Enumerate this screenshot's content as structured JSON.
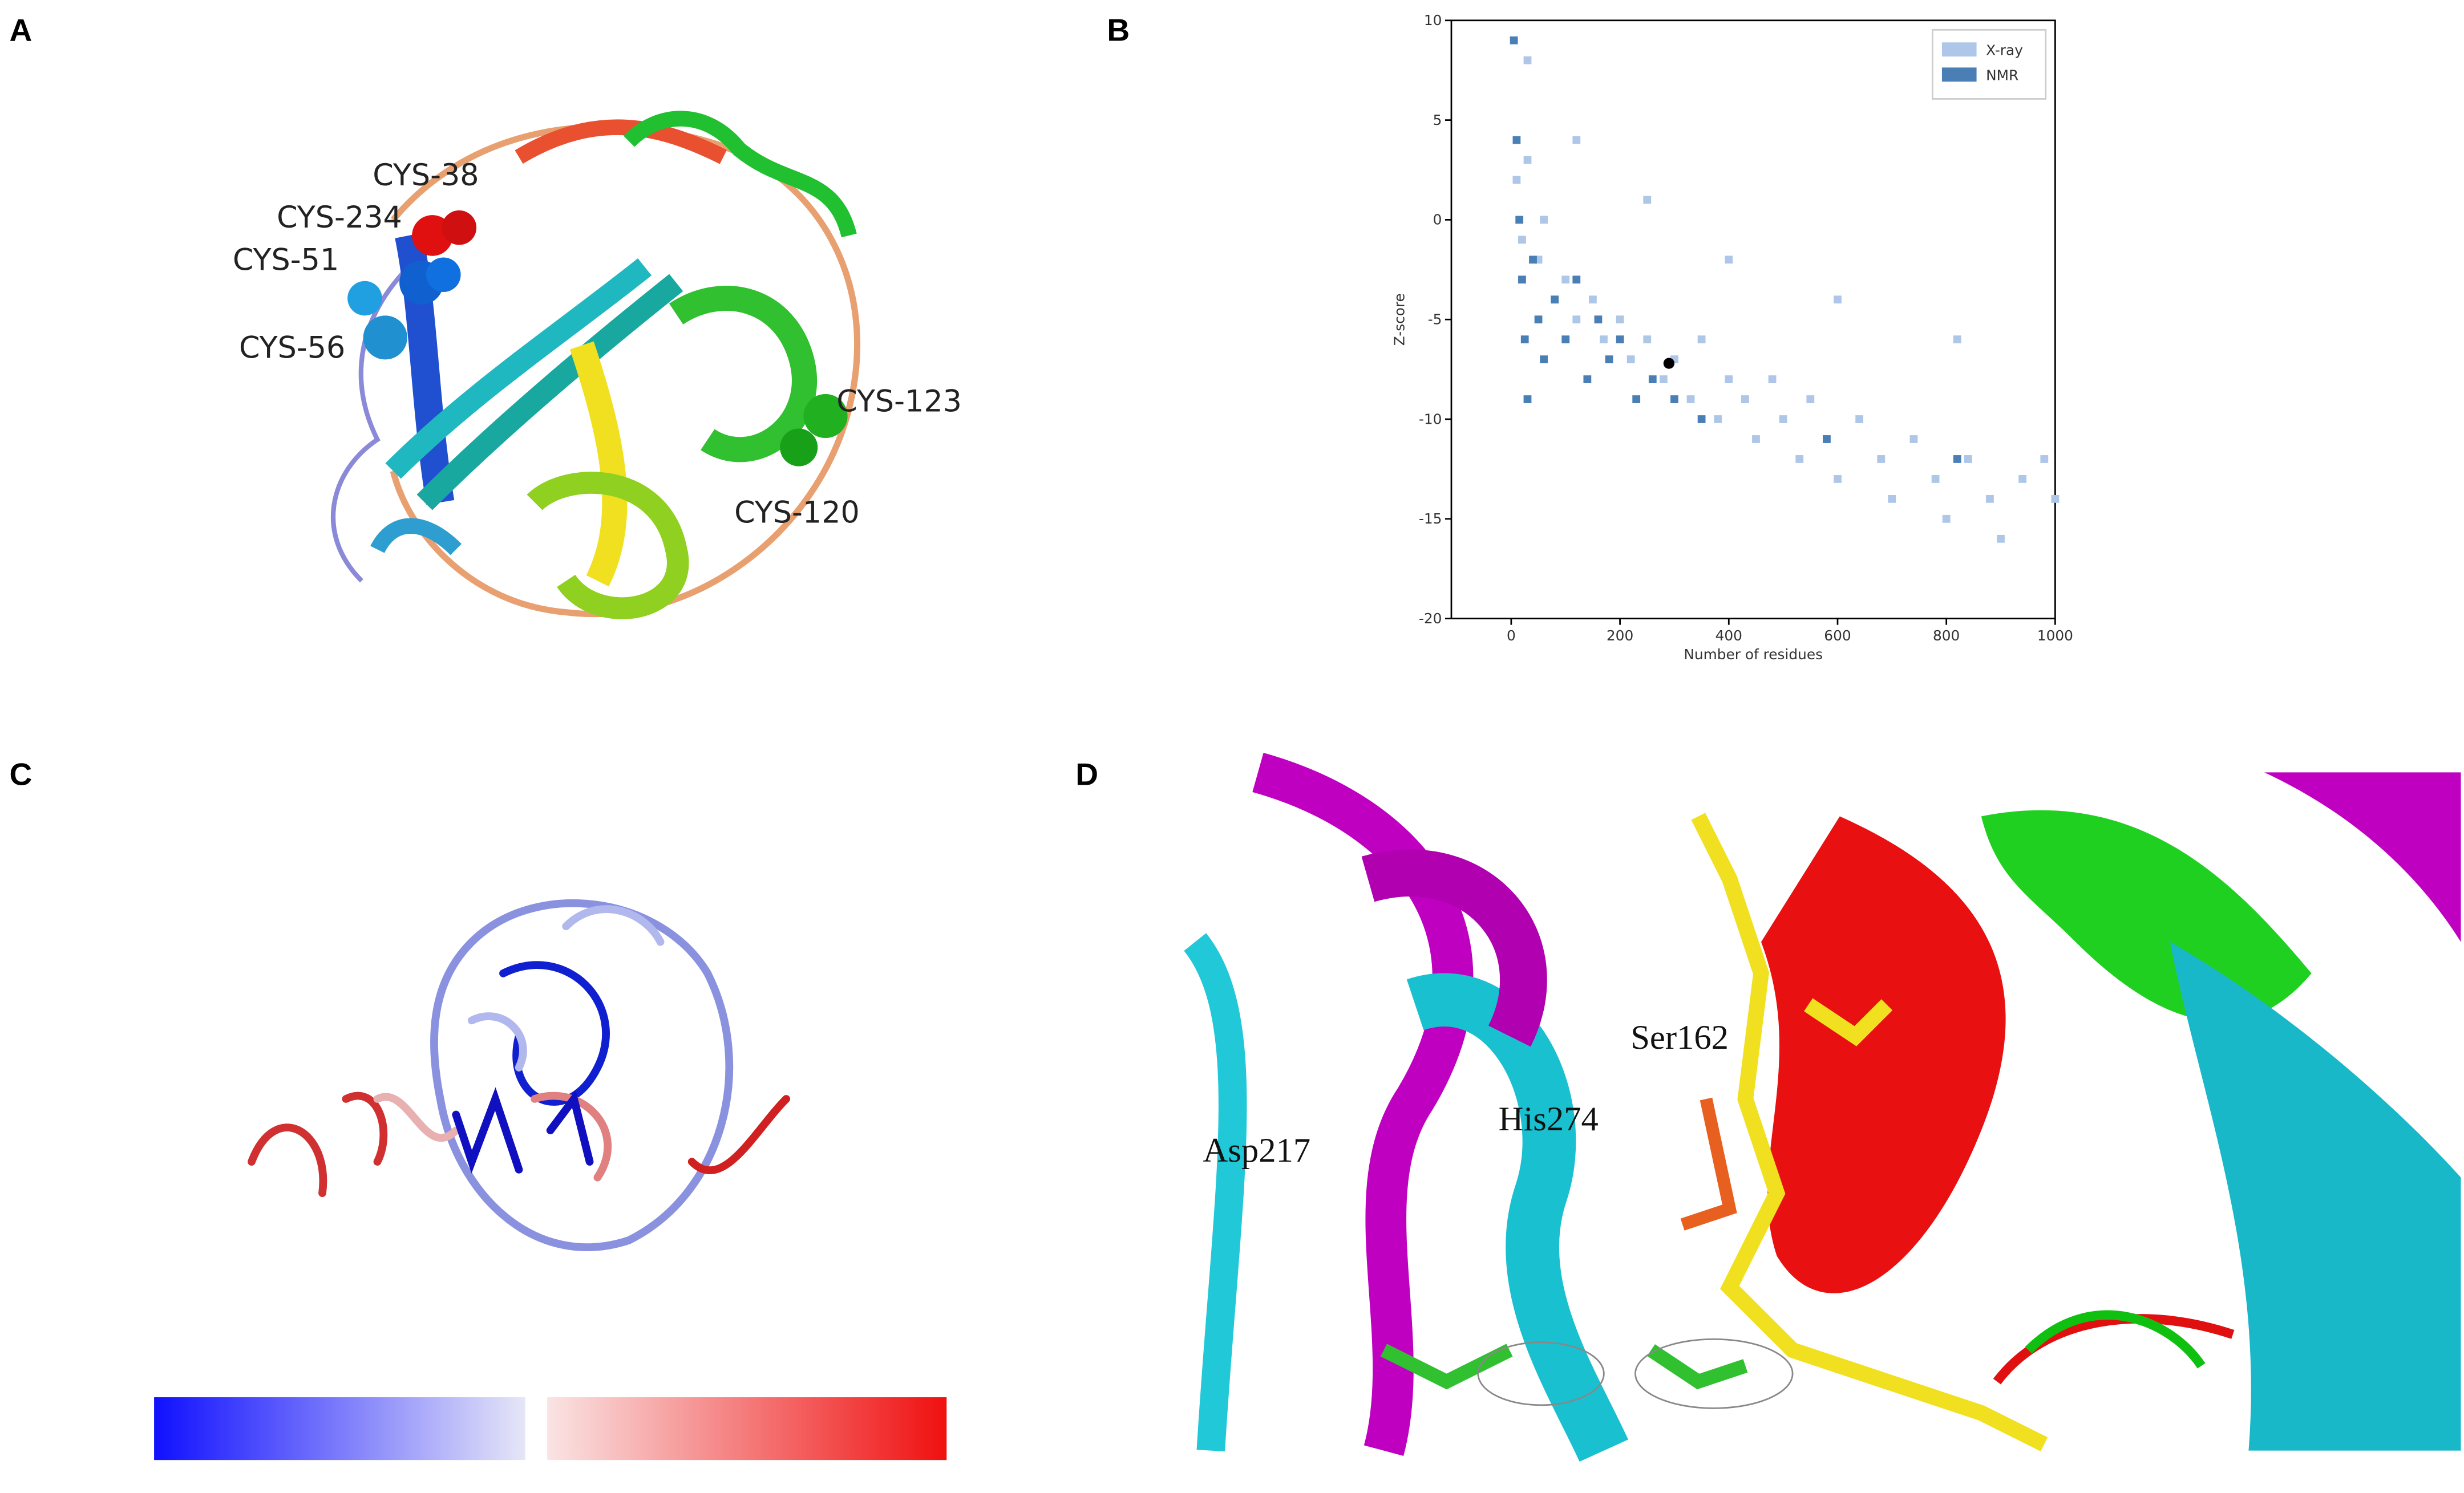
{
  "panel_labels": [
    "A",
    "B",
    "C",
    "D"
  ],
  "structure_a": {
    "labels": [
      "CYS-38",
      "CYS-234",
      "CYS-51",
      "CYS-56",
      "CYS-123",
      "CYS-120"
    ]
  },
  "structure_d": {
    "labels": [
      "Ser162",
      "His274",
      "Asp217"
    ]
  },
  "chart_data": {
    "type": "scatter",
    "x_label": "Number of residues",
    "y_label": "Z-score",
    "xlim": [
      -110,
      1000
    ],
    "ylim": [
      -20,
      10
    ],
    "xticks": [
      0,
      200,
      400,
      600,
      800,
      1000
    ],
    "yticks": [
      -20,
      -15,
      -10,
      -5,
      0,
      5,
      10
    ],
    "legend": "upper right",
    "series": [
      {
        "name": "X-ray",
        "color": "#aec6e8",
        "x": [
          10,
          20,
          30,
          50,
          60,
          80,
          100,
          120,
          150,
          170,
          200,
          220,
          250,
          280,
          300,
          330,
          350,
          380,
          400,
          430,
          450,
          480,
          500,
          530,
          550,
          580,
          600,
          640,
          680,
          700,
          740,
          780,
          800,
          840,
          880,
          900,
          940,
          980,
          1000,
          30,
          120,
          250,
          400,
          600,
          820
        ],
        "values": [
          2,
          -1,
          3,
          -2,
          0,
          -4,
          -3,
          -5,
          -4,
          -6,
          -5,
          -7,
          -6,
          -8,
          -7,
          -9,
          -6,
          -10,
          -8,
          -9,
          -11,
          -8,
          -10,
          -12,
          -9,
          -11,
          -13,
          -10,
          -12,
          -14,
          -11,
          -13,
          -15,
          -12,
          -14,
          -16,
          -13,
          -12,
          -14,
          8,
          4,
          1,
          -2,
          -4,
          -6
        ]
      },
      {
        "name": "NMR",
        "color": "#4a7fb5",
        "x": [
          5,
          10,
          15,
          20,
          25,
          30,
          40,
          50,
          60,
          80,
          100,
          120,
          140,
          160,
          180,
          200,
          230,
          260,
          300,
          350,
          580,
          820
        ],
        "values": [
          9,
          4,
          0,
          -3,
          -6,
          -9,
          -2,
          -5,
          -7,
          -4,
          -6,
          -3,
          -8,
          -5,
          -7,
          -6,
          -9,
          -8,
          -9,
          -10,
          -11,
          -12
        ]
      }
    ],
    "highlight": {
      "x": [
        290
      ],
      "values": [
        -7.2
      ],
      "color": "#000000"
    }
  }
}
